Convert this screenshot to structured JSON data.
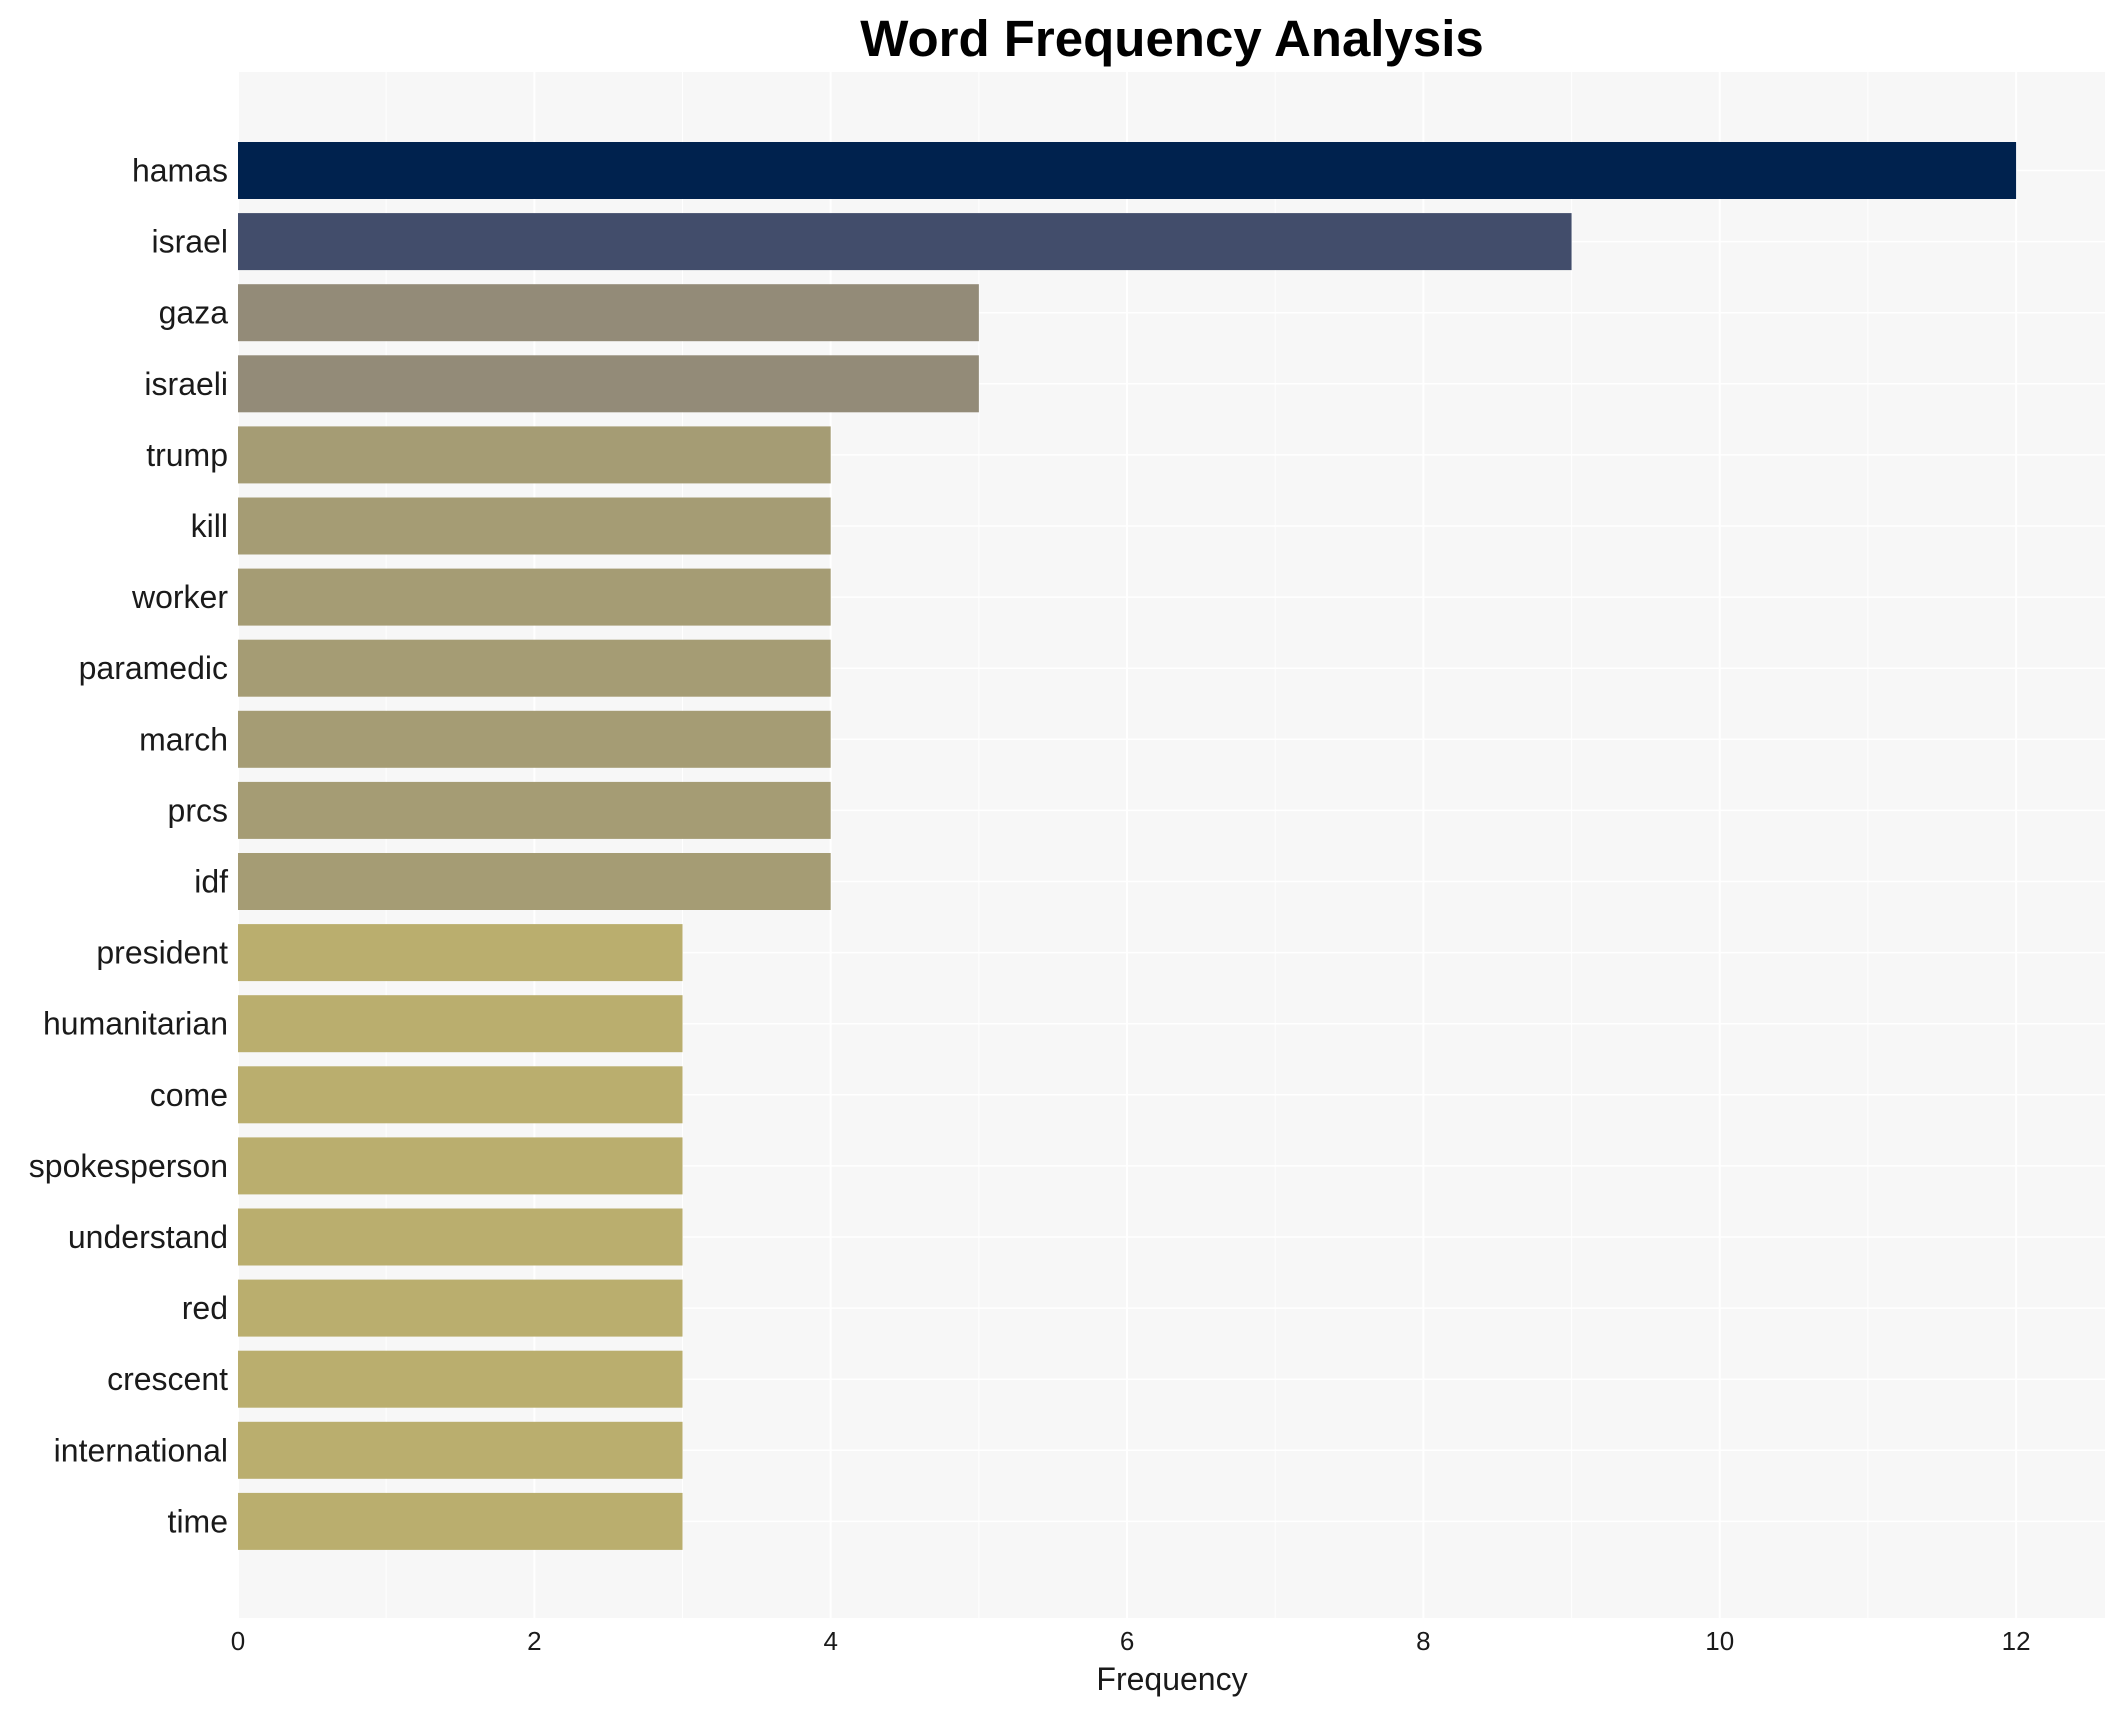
{
  "chart_data": {
    "type": "bar",
    "orientation": "horizontal",
    "title": "Word Frequency Analysis",
    "xlabel": "Frequency",
    "ylabel": "",
    "categories": [
      "hamas",
      "israel",
      "gaza",
      "israeli",
      "trump",
      "kill",
      "worker",
      "paramedic",
      "march",
      "prcs",
      "idf",
      "president",
      "humanitarian",
      "come",
      "spokesperson",
      "understand",
      "red",
      "crescent",
      "international",
      "time"
    ],
    "values": [
      12,
      9,
      5,
      5,
      4,
      4,
      4,
      4,
      4,
      4,
      4,
      3,
      3,
      3,
      3,
      3,
      3,
      3,
      3,
      3
    ],
    "colors": [
      "#00224e",
      "#424d6b",
      "#938b78",
      "#938b78",
      "#a59c74",
      "#a59c74",
      "#a59c74",
      "#a59c74",
      "#a59c74",
      "#a59c74",
      "#a59c74",
      "#baae6e",
      "#baae6e",
      "#baae6e",
      "#baae6e",
      "#baae6e",
      "#baae6e",
      "#baae6e",
      "#baae6e",
      "#baae6e"
    ],
    "xlim": [
      0,
      12.6
    ],
    "xticks": [
      0,
      2,
      4,
      6,
      8,
      10,
      12
    ],
    "grid": true,
    "background": "#f7f7f7",
    "legend": "none"
  }
}
